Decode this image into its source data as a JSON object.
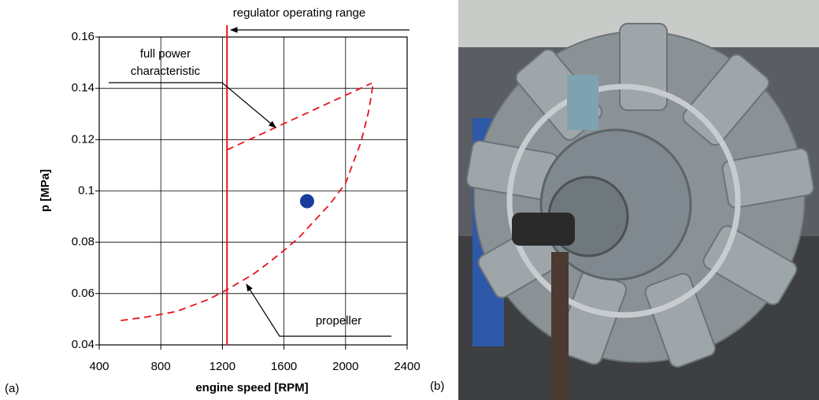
{
  "chart_data": {
    "type": "line",
    "x_label": "engine speed [RPM]",
    "y_label": "p [MPa]",
    "xlim": [
      400,
      2400
    ],
    "xticks": [
      400,
      800,
      1200,
      1600,
      2000,
      2400
    ],
    "ylim": [
      0.04,
      0.16
    ],
    "yticks": [
      0.04,
      0.06,
      0.08,
      0.1,
      0.12,
      0.14,
      0.16
    ],
    "grid": true,
    "series": [
      {
        "name": "full power characteristic",
        "color": "#e8141c",
        "dashed": true,
        "x": [
          1230,
          2170
        ],
        "values": [
          0.116,
          0.142
        ]
      },
      {
        "name": "propeller",
        "color": "#e8141c",
        "dashed": true,
        "x": [
          540,
          700,
          900,
          1100,
          1200,
          1300,
          1400,
          1500,
          1600,
          1700,
          1800,
          1900,
          2000,
          2100,
          2150,
          2180
        ],
        "values": [
          0.0495,
          0.0508,
          0.053,
          0.0575,
          0.0605,
          0.064,
          0.0675,
          0.072,
          0.0768,
          0.082,
          0.0885,
          0.095,
          0.103,
          0.119,
          0.131,
          0.142
        ]
      }
    ],
    "reference_lines": [
      {
        "x": 1230,
        "label": "regulator operating range",
        "color": "#e8141c"
      }
    ],
    "points": [
      {
        "x": 1750,
        "y": 0.096,
        "color": "#1a3c9c"
      }
    ]
  },
  "panel_labels": [
    "(a)",
    "(b)"
  ]
}
